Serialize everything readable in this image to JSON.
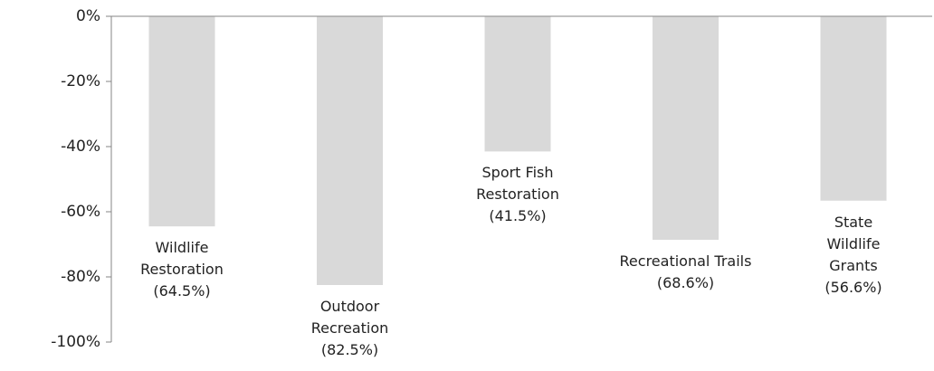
{
  "chart_data": {
    "type": "bar",
    "categories": [
      "Wildlife Restoration",
      "Outdoor Recreation",
      "Sport Fish Restoration",
      "Recreational Trails",
      "State Wildlife Grants"
    ],
    "values": [
      -64.5,
      -82.5,
      -41.5,
      -68.6,
      -56.6
    ],
    "value_labels": [
      "(64.5%)",
      "(82.5%)",
      "(41.5%)",
      "(68.6%)",
      "(56.6%)"
    ],
    "color": "#d9d9d9",
    "ylim": [
      -100,
      0
    ],
    "yticks": [
      {
        "value": 0,
        "label": "0%"
      },
      {
        "value": -20,
        "label": "-20%"
      },
      {
        "value": -40,
        "label": "-40%"
      },
      {
        "value": -60,
        "label": "-60%"
      },
      {
        "value": -80,
        "label": "-80%"
      },
      {
        "value": -100,
        "label": "-100%"
      }
    ]
  }
}
